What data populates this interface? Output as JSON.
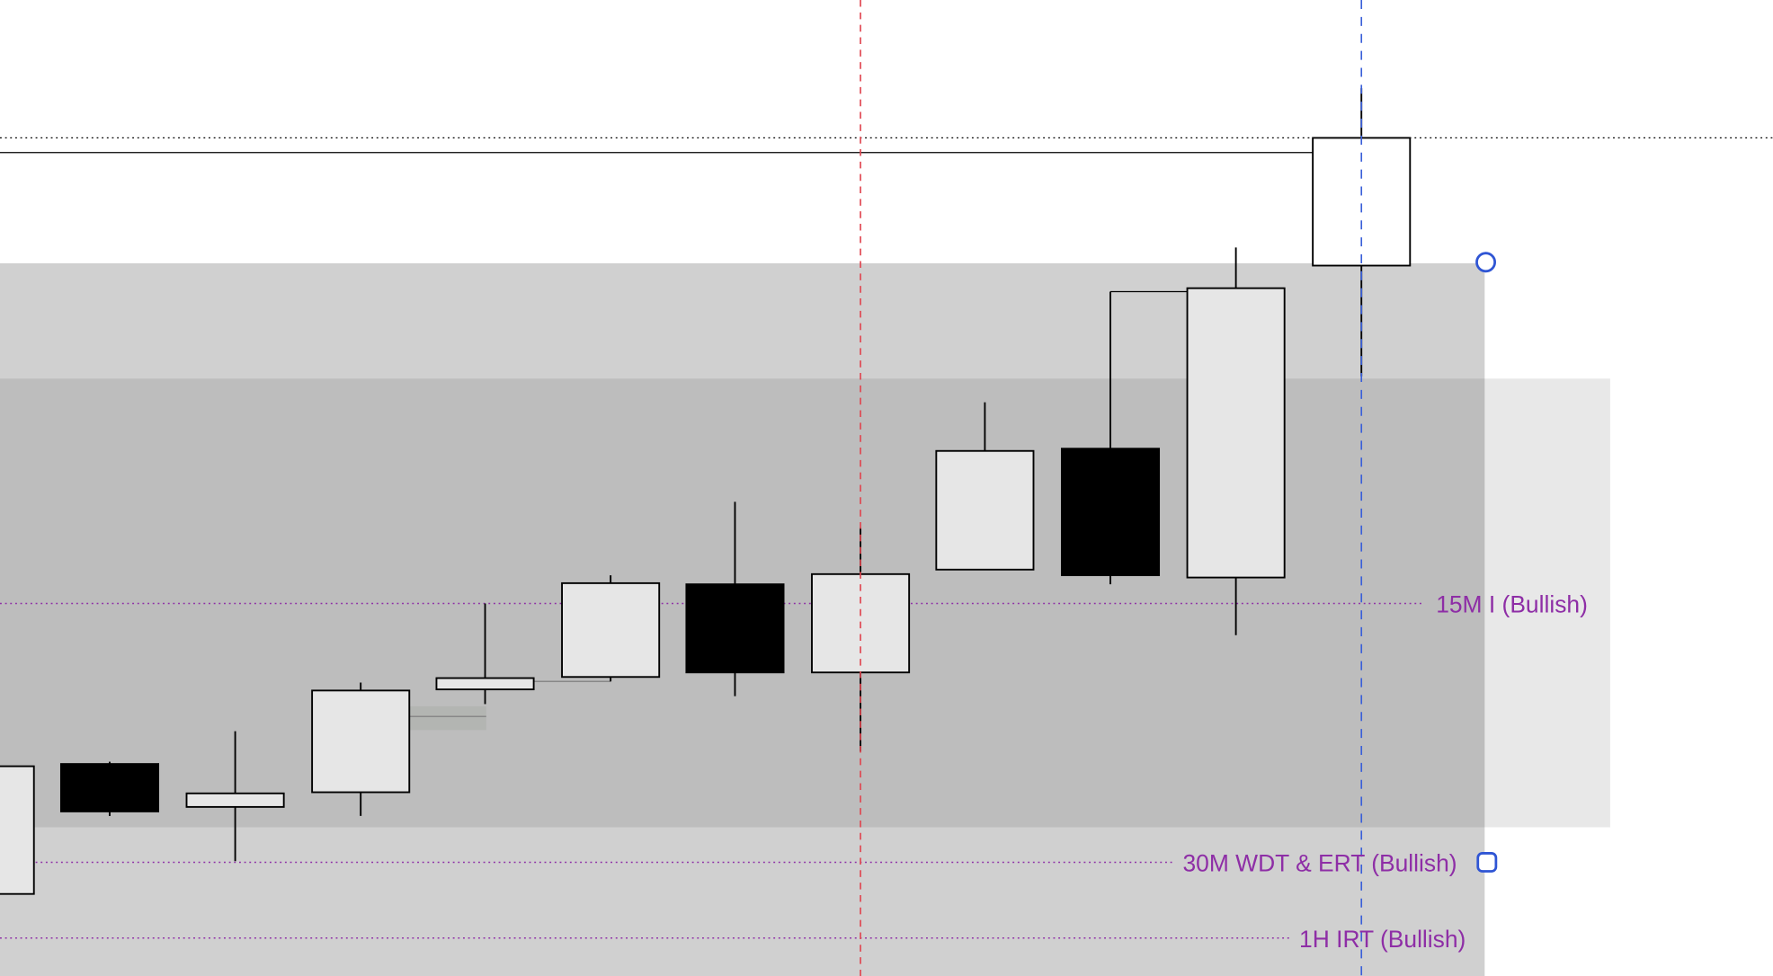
{
  "chart_data": {
    "type": "candlestick",
    "title": "",
    "xlabel": "",
    "ylabel": "",
    "colors": {
      "bull_fill": "#e6e6e6",
      "bear_fill": "#000000",
      "last_fill": "#ffffff",
      "zone_outer": "#d0d0d0",
      "zone_inner": "#bdbdbd",
      "zone_extension": "#e8e8e8",
      "level_line": "#8e2ea6",
      "red_marker": "#e0454f",
      "blue_marker": "#3a5fd9",
      "handle": "#2f55d4"
    },
    "candles": [
      {
        "open": 73,
        "high": 188,
        "low": 70,
        "close": 186,
        "bull": true
      },
      {
        "open": 188,
        "high": 190,
        "low": 142,
        "close": 146,
        "bull": false
      },
      {
        "open": 150,
        "high": 217,
        "low": 102,
        "close": 162,
        "bull": true
      },
      {
        "open": 163,
        "high": 260,
        "low": 142,
        "close": 253,
        "bull": true
      },
      {
        "open": 254,
        "high": 330,
        "low": 241,
        "close": 264,
        "bull": true
      },
      {
        "open": 265,
        "high": 355,
        "low": 261,
        "close": 348,
        "bull": true
      },
      {
        "open": 347,
        "high": 420,
        "low": 248,
        "close": 269,
        "bull": false
      },
      {
        "open": 269,
        "high": 397,
        "low": 199,
        "close": 356,
        "bull": true
      },
      {
        "open": 360,
        "high": 508,
        "low": 360,
        "close": 465,
        "bull": true
      },
      {
        "open": 467,
        "high": 606,
        "low": 347,
        "close": 355,
        "bull": false
      },
      {
        "open": 353,
        "high": 645,
        "low": 302,
        "close": 609,
        "bull": true
      },
      {
        "open": 629,
        "high": 786,
        "low": 531,
        "close": 742,
        "bull": true
      }
    ],
    "levels": [
      {
        "label": "15M I (Bullish)",
        "price": 330
      },
      {
        "label": "30M WDT & ERT (Bullish)",
        "price": 101
      },
      {
        "label": "1H IRT (Bullish)",
        "price": 34
      }
    ],
    "reference_lines": {
      "dotted_high": 742,
      "solid_high": 729
    },
    "zones": {
      "outer": {
        "top": 631,
        "bottom": 0
      },
      "inner": {
        "top": 529,
        "bottom": 132
      }
    }
  }
}
